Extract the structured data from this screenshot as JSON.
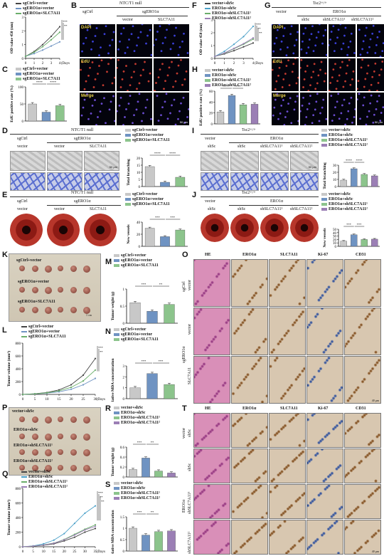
{
  "panels": [
    "A",
    "B",
    "C",
    "D",
    "E",
    "F",
    "G",
    "H",
    "I",
    "J",
    "K",
    "L",
    "M",
    "N",
    "O",
    "P",
    "Q",
    "R",
    "S",
    "T"
  ],
  "header": {
    "ntc": "NTC/T1 null",
    "tsc": "Tsc2+/+",
    "sgCtrl": "sgCtrl",
    "sgERO1a": "sgERO1α",
    "vector": "vector",
    "slc": "SLC7A11",
    "ero1a": "ERO1α",
    "shSc": "shSc",
    "shSLC1": "shSLC7A11¹",
    "shSLC2": "shSLC7A11²"
  },
  "stains": [
    "DAPI",
    "EdU",
    "Merge"
  ],
  "scalebars": {
    "um50": "50 μm",
    "um40": "40 μm",
    "cm1": "1 cm"
  },
  "ihc_cols": [
    "HE",
    "ERO1α",
    "SLC7A11",
    "Ki-67",
    "CD31"
  ],
  "rowlabels_O": {
    "r1": "sgCtrl",
    "r1b": "vector",
    "r2b": "vector",
    "r3b": "SLC7A11",
    "grp": "sgERO1α"
  },
  "rowlabels_T": {
    "r1": "vector",
    "r1b": "shSc",
    "r2b": "shSc",
    "r3b": "shSLC7A11¹",
    "r4b": "shSLC7A11²",
    "grp": "ERO1α"
  },
  "legend3": [
    "sgCtrl+vector",
    "sgERO1α+vector",
    "sgERO1α+SLC7A11"
  ],
  "legend4": [
    "vector+shSc",
    "ERO1α+shSc",
    "ERO1α+shSLC7A11¹",
    "ERO1α+shSLC7A11²"
  ],
  "colors3": [
    "#c8c8c8",
    "#6f93c2",
    "#8cc48c"
  ],
  "colors4": [
    "#c8c8c8",
    "#6f93c2",
    "#8cc48c",
    "#9b7fb5"
  ],
  "sig": {
    "s4": "****",
    "s3": "***",
    "s2": "**"
  },
  "chart_data": [
    {
      "id": "A",
      "type": "line",
      "ylabel": "OD value 450 (nm)",
      "xlabel": "(Days)",
      "x": [
        0,
        1,
        2,
        3,
        4
      ],
      "ylim": [
        0,
        3
      ],
      "yticks": [
        0,
        1,
        2,
        3
      ],
      "series": [
        {
          "name": "sgCtrl+vector",
          "values": [
            0.15,
            0.5,
            1.0,
            1.6,
            2.3
          ]
        },
        {
          "name": "sgERO1α+vector",
          "values": [
            0.15,
            0.35,
            0.6,
            0.9,
            1.2
          ]
        },
        {
          "name": "sgERO1α+SLC7A11",
          "values": [
            0.15,
            0.45,
            0.85,
            1.35,
            1.9
          ]
        }
      ]
    },
    {
      "id": "C",
      "type": "bar",
      "ylabel": "EdU positive rate (%)",
      "categories": [
        "sgCtrl+vector",
        "sgERO1α+vector",
        "sgERO1α+SLC7A11"
      ],
      "values": [
        50,
        26,
        45
      ],
      "ylim": [
        0,
        100
      ],
      "yticks": [
        0,
        50,
        100
      ]
    },
    {
      "id": "D",
      "type": "bar",
      "ylabel": "Total branching",
      "categories": [
        "sgCtrl+vector",
        "sgERO1α+vector",
        "sgERO1α+SLC7A11"
      ],
      "values": [
        14,
        3,
        6.5
      ],
      "ylim": [
        0,
        20
      ],
      "yticks": [
        0,
        5,
        10,
        15,
        20
      ]
    },
    {
      "id": "E",
      "type": "bar",
      "ylabel": "New vessels",
      "categories": [
        "sgCtrl+vector",
        "sgERO1α+vector",
        "sgERO1α+SLC7A11"
      ],
      "values": [
        30,
        16,
        27
      ],
      "ylim": [
        0,
        40
      ],
      "yticks": [
        0,
        20,
        40
      ]
    },
    {
      "id": "F",
      "type": "line",
      "ylabel": "OD value 450 (nm)",
      "xlabel": "(Days)",
      "x": [
        0,
        1,
        2,
        3,
        4
      ],
      "ylim": [
        0,
        3
      ],
      "yticks": [
        0,
        1,
        2,
        3
      ],
      "series": [
        {
          "name": "vector+shSc",
          "values": [
            0.15,
            0.35,
            0.6,
            0.9,
            1.2
          ]
        },
        {
          "name": "ERO1α+shSc",
          "values": [
            0.15,
            0.55,
            1.1,
            1.7,
            2.5
          ]
        },
        {
          "name": "ERO1α+shSLC7A11¹",
          "values": [
            0.15,
            0.4,
            0.75,
            1.1,
            1.5
          ]
        },
        {
          "name": "ERO1α+shSLC7A11²",
          "values": [
            0.15,
            0.42,
            0.78,
            1.15,
            1.6
          ]
        }
      ]
    },
    {
      "id": "H",
      "type": "bar",
      "ylabel": "EdU positive rate (%)",
      "categories": [
        "vector+shSc",
        "ERO1α+shSc",
        "ERO1α+shSLC7A11¹",
        "ERO1α+shSLC7A11²"
      ],
      "values": [
        22,
        52,
        35,
        36
      ],
      "ylim": [
        0,
        60
      ],
      "yticks": [
        0,
        20,
        40,
        60
      ]
    },
    {
      "id": "I",
      "type": "bar",
      "ylabel": "Total branching",
      "categories": [
        "vector+shSc",
        "ERO1α+shSc",
        "ERO1α+shSLC7A11¹",
        "ERO1α+shSLC7A11²"
      ],
      "values": [
        9,
        25,
        17,
        15
      ],
      "ylim": [
        0,
        30
      ],
      "yticks": [
        0,
        10,
        20,
        30
      ]
    },
    {
      "id": "J",
      "type": "bar",
      "ylabel": "New vessels",
      "categories": [
        "vector+shSc",
        "ERO1α+shSc",
        "ERO1α+shSLC7A11¹",
        "ERO1α+shSLC7A11²"
      ],
      "values": [
        15,
        34,
        20,
        21
      ],
      "ylim": [
        0,
        50
      ],
      "yticks": [
        0,
        10,
        20,
        30,
        40,
        50
      ]
    },
    {
      "id": "M",
      "type": "bar",
      "ylabel": "Tumor weight (g)",
      "categories": [
        "sgCtrl+vector",
        "sgERO1α+vector",
        "sgERO1α+SLC7A11"
      ],
      "values": [
        0.6,
        0.35,
        0.55
      ],
      "ylim": [
        0,
        1
      ],
      "yticks": [
        0,
        0.5,
        1.0
      ]
    },
    {
      "id": "N",
      "type": "bar",
      "ylabel": "Relative MDA concentration",
      "categories": [
        "sgCtrl+vector",
        "sgERO1α+vector",
        "sgERO1α+SLC7A11"
      ],
      "values": [
        1.0,
        2.3,
        1.3
      ],
      "ylim": [
        0,
        3
      ],
      "yticks": [
        0,
        1,
        2,
        3
      ]
    },
    {
      "id": "L",
      "type": "line",
      "ylabel": "Tumor volume (mm³)",
      "xlabel": "(Days)",
      "x": [
        0,
        5,
        10,
        15,
        20,
        25,
        30
      ],
      "ylim": [
        0,
        800
      ],
      "yticks": [
        0,
        200,
        400,
        600,
        800
      ],
      "series": [
        {
          "name": "sgCtrl+vector",
          "values": [
            0,
            10,
            30,
            70,
            150,
            300,
            560
          ]
        },
        {
          "name": "sgERO1α+vector",
          "values": [
            0,
            8,
            20,
            40,
            80,
            150,
            250
          ]
        },
        {
          "name": "sgERO1α+SLC7A11",
          "values": [
            0,
            9,
            25,
            55,
            110,
            210,
            380
          ]
        }
      ]
    },
    {
      "id": "R",
      "type": "bar",
      "ylabel": "Tumor weight (g)",
      "categories": [
        "vector+shSc",
        "ERO1α+shSc",
        "ERO1α+shSLC7A11¹",
        "ERO1α+shSLC7A11²"
      ],
      "values": [
        0.15,
        0.38,
        0.12,
        0.08
      ],
      "ylim": [
        0,
        0.6
      ],
      "yticks": [
        0,
        0.2,
        0.4,
        0.6
      ]
    },
    {
      "id": "Q",
      "type": "line",
      "ylabel": "Tumor volume (mm³)",
      "xlabel": "(Days)",
      "x": [
        0,
        5,
        10,
        15,
        20,
        25,
        30,
        35
      ],
      "ylim": [
        0,
        800
      ],
      "yticks": [
        0,
        200,
        400,
        600,
        800
      ],
      "series": [
        {
          "name": "vector+shSc",
          "values": [
            0,
            8,
            20,
            40,
            80,
            130,
            200,
            250
          ]
        },
        {
          "name": "ERO1α+shSc",
          "values": [
            0,
            12,
            40,
            90,
            180,
            320,
            460,
            560
          ]
        },
        {
          "name": "ERO1α+shSLC7A11¹",
          "values": [
            0,
            9,
            25,
            50,
            100,
            170,
            240,
            300
          ]
        },
        {
          "name": "ERO1α+shSLC7A11²",
          "values": [
            0,
            9,
            24,
            48,
            95,
            160,
            230,
            280
          ]
        }
      ]
    },
    {
      "id": "S",
      "type": "bar",
      "ylabel": "Relative MDA concentration",
      "categories": [
        "vector+shSc",
        "ERO1α+shSc",
        "ERO1α+shSLC7A11¹",
        "ERO1α+shSLC7A11²"
      ],
      "values": [
        1.0,
        0.7,
        0.85,
        0.88
      ],
      "ylim": [
        0,
        1.5
      ],
      "yticks": [
        0,
        0.5,
        1.0,
        1.5
      ]
    }
  ]
}
